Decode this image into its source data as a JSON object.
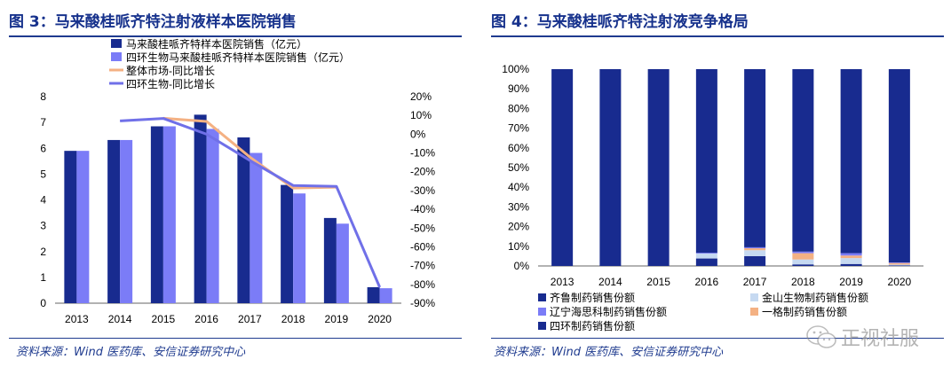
{
  "left": {
    "title": "图 3：马来酸桂哌齐特注射液样本医院销售",
    "source": "资料来源：Wind 医药库、安信证券研究中心"
  },
  "right": {
    "title": "图 4：马来酸桂哌齐特注射液竞争格局",
    "source": "资料来源：Wind 医药库、安信证券研究中心"
  },
  "watermark": {
    "text": "正视社服"
  },
  "colors": {
    "navy": "#182b8f",
    "periwinkle": "#7b7cf7",
    "orange": "#f4b183",
    "lineblue": "#7070e8",
    "lightblue": "#c6d9f1",
    "orange2": "#f4b183",
    "title": "#16318c"
  },
  "chart_data": [
    {
      "type": "bar+line",
      "categories": [
        "2013",
        "2014",
        "2015",
        "2016",
        "2017",
        "2018",
        "2019",
        "2020"
      ],
      "series": [
        {
          "name": "马来酸桂哌齐特样本医院销售（亿元）",
          "kind": "bar",
          "axis": "left",
          "color": "#182b8f",
          "values": [
            5.9,
            6.32,
            6.85,
            7.3,
            6.42,
            4.58,
            3.3,
            0.62
          ]
        },
        {
          "name": "四环生物马来酸桂哌齐特样本医院销售（亿元）",
          "kind": "bar",
          "axis": "left",
          "color": "#7b7cf7",
          "values": [
            5.9,
            6.32,
            6.85,
            6.75,
            5.82,
            4.25,
            3.08,
            0.58
          ]
        },
        {
          "name": "整体市场-同比增长",
          "kind": "line",
          "axis": "right",
          "color": "#f4b183",
          "values": [
            null,
            null,
            8.5,
            6.8,
            -12.2,
            -28.7,
            -28.2,
            null
          ]
        },
        {
          "name": "四环生物-同比增长",
          "kind": "line",
          "axis": "right",
          "color": "#7070e8",
          "values": [
            null,
            7.1,
            8.4,
            0.0,
            -14.0,
            -27.3,
            -27.8,
            -81.5
          ]
        }
      ],
      "y_left": {
        "min": 0,
        "max": 8,
        "ticks": [
          "0",
          "1",
          "2",
          "3",
          "4",
          "5",
          "6",
          "7",
          "8"
        ]
      },
      "y_right": {
        "min": -90,
        "max": 20,
        "ticks": [
          "-90%",
          "-80%",
          "-70%",
          "-60%",
          "-50%",
          "-40%",
          "-30%",
          "-20%",
          "-10%",
          "0%",
          "10%",
          "20%"
        ]
      },
      "legend_position": "top"
    },
    {
      "type": "stacked-bar",
      "categories": [
        "2013",
        "2014",
        "2015",
        "2016",
        "2017",
        "2018",
        "2019",
        "2020"
      ],
      "y_ticks": [
        "0%",
        "10%",
        "20%",
        "30%",
        "40%",
        "50%",
        "60%",
        "70%",
        "80%",
        "90%",
        "100%"
      ],
      "stack_order": [
        "四环制药销售份额",
        "金山生物制药销售份额",
        "一格制药销售份额",
        "辽宁海思科制药销售份额",
        "齐鲁制药销售份额"
      ],
      "series": [
        {
          "name": "四环制药销售份额",
          "color": "#182b8f",
          "values": [
            0,
            0,
            0,
            3.8,
            5.0,
            0.8,
            1.0,
            0.3
          ]
        },
        {
          "name": "金山生物制药销售份额",
          "color": "#c6d9f1",
          "values": [
            0,
            0,
            0,
            2.5,
            3.0,
            2.5,
            3.0,
            0.4
          ]
        },
        {
          "name": "一格制药销售份额",
          "color": "#f4b183",
          "values": [
            0,
            0,
            0,
            0,
            1.0,
            3.2,
            1.3,
            0.8
          ]
        },
        {
          "name": "辽宁海思科制药销售份额",
          "color": "#7b7cf7",
          "values": [
            0,
            0,
            0,
            0.4,
            0.5,
            0.8,
            1.2,
            0.3
          ]
        },
        {
          "name": "齐鲁制药销售份额",
          "color": "#182b8f",
          "values": [
            100,
            100,
            100,
            93.3,
            90.5,
            92.7,
            93.5,
            98.2
          ]
        }
      ],
      "legend": [
        "齐鲁制药销售份额",
        "金山生物制药销售份额",
        "辽宁海思科制药销售份额",
        "一格制药销售份额",
        "四环制药销售份额"
      ],
      "legend_position": "bottom"
    }
  ]
}
